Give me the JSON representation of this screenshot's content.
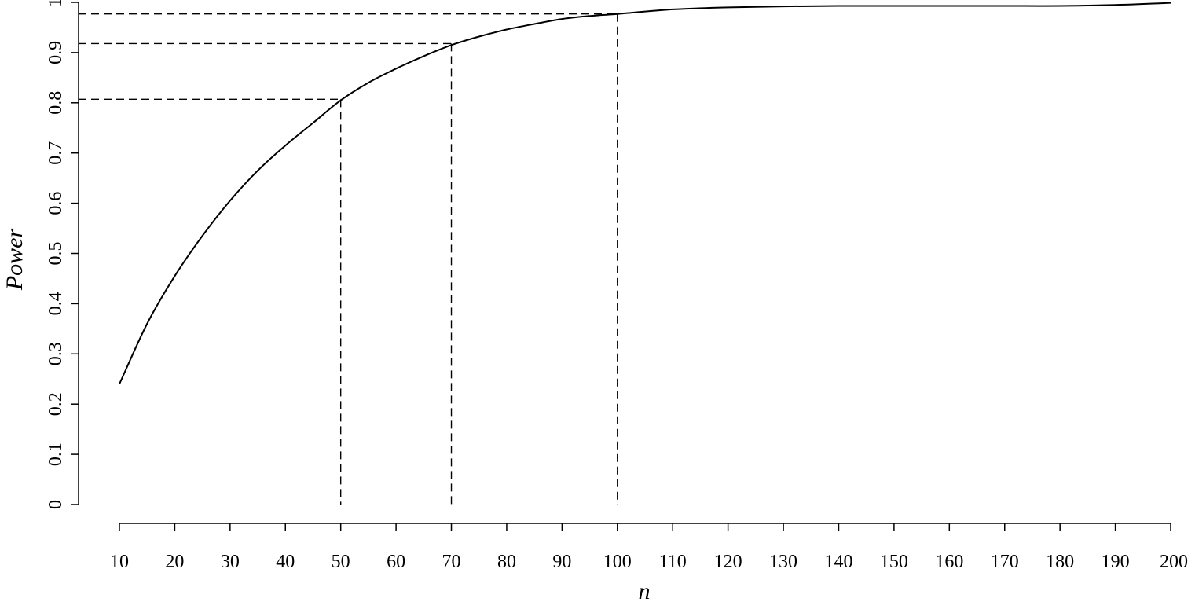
{
  "chart_data": {
    "type": "line",
    "title": "",
    "xlabel": "n",
    "ylabel": "Power",
    "xlim": [
      10,
      200
    ],
    "ylim": [
      0,
      1
    ],
    "xticks": [
      10,
      20,
      30,
      40,
      50,
      60,
      70,
      80,
      90,
      100,
      110,
      120,
      130,
      140,
      150,
      160,
      170,
      180,
      190,
      200
    ],
    "yticks": [
      0,
      0.1,
      0.2,
      0.3,
      0.4,
      0.5,
      0.6,
      0.7,
      0.8,
      0.9,
      1
    ],
    "ytick_labels": [
      "0",
      "0.1",
      "0.2",
      "0.3",
      "0.4",
      "0.5",
      "0.6",
      "0.7",
      "0.8",
      "0.9",
      "1"
    ],
    "grid": false,
    "series": [
      {
        "x": [
          10,
          15,
          20,
          25,
          30,
          35,
          40,
          45,
          50,
          55,
          60,
          65,
          70,
          75,
          80,
          85,
          90,
          95,
          100,
          110,
          120,
          130,
          140,
          150,
          160,
          170,
          180,
          190,
          200
        ],
        "y": [
          0.24,
          0.36,
          0.455,
          0.535,
          0.605,
          0.665,
          0.715,
          0.76,
          0.805,
          0.84,
          0.868,
          0.893,
          0.915,
          0.932,
          0.946,
          0.957,
          0.967,
          0.973,
          0.977,
          0.986,
          0.99,
          0.992,
          0.993,
          0.993,
          0.993,
          0.993,
          0.993,
          0.995,
          0.999
        ],
        "color": "#000000"
      }
    ],
    "reference_lines": [
      {
        "x": 50,
        "y": 0.807
      },
      {
        "x": 70,
        "y": 0.918
      },
      {
        "x": 100,
        "y": 0.977
      }
    ]
  }
}
